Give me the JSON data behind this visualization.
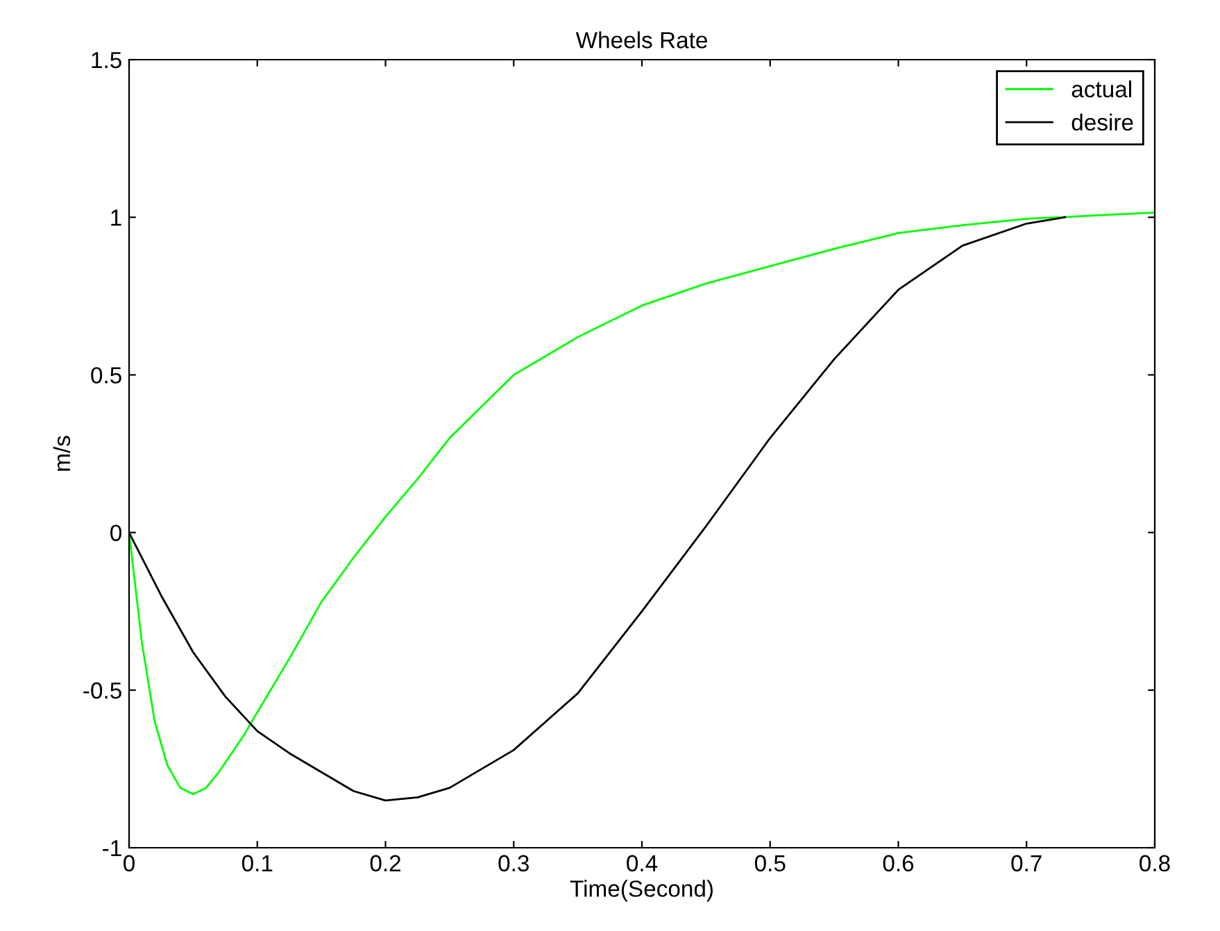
{
  "chart_data": {
    "type": "line",
    "title": "Wheels Rate",
    "xlabel": "Time(Second)",
    "ylabel": "m/s",
    "xlim": [
      0,
      0.8
    ],
    "ylim": [
      -1,
      1.5
    ],
    "xticks": [
      0,
      0.1,
      0.2,
      0.3,
      0.4,
      0.5,
      0.6,
      0.7,
      0.8
    ],
    "yticks": [
      -1,
      -0.5,
      0,
      0.5,
      1,
      1.5
    ],
    "grid": false,
    "legend": "top right",
    "marker": "none",
    "line_style": "solid",
    "series": [
      {
        "name": "actual",
        "color": "#00ff00",
        "x": [
          0,
          0.01,
          0.02,
          0.03,
          0.04,
          0.05,
          0.06,
          0.07,
          0.08,
          0.09,
          0.1,
          0.125,
          0.15,
          0.175,
          0.2,
          0.225,
          0.25,
          0.3,
          0.35,
          0.4,
          0.45,
          0.5,
          0.55,
          0.6,
          0.65,
          0.7,
          0.75,
          0.8
        ],
        "values": [
          0,
          -0.35,
          -0.6,
          -0.74,
          -0.81,
          -0.83,
          -0.81,
          -0.76,
          -0.7,
          -0.64,
          -0.57,
          -0.4,
          -0.22,
          -0.08,
          0.05,
          0.17,
          0.3,
          0.5,
          0.62,
          0.72,
          0.79,
          0.845,
          0.9,
          0.95,
          0.975,
          0.995,
          1.005,
          1.015
        ]
      },
      {
        "name": "desire",
        "color": "#000000",
        "x": [
          0,
          0.025,
          0.05,
          0.075,
          0.1,
          0.125,
          0.15,
          0.175,
          0.2,
          0.225,
          0.25,
          0.3,
          0.35,
          0.4,
          0.45,
          0.5,
          0.55,
          0.6,
          0.65,
          0.7,
          0.73
        ],
        "values": [
          0,
          -0.2,
          -0.38,
          -0.52,
          -0.63,
          -0.7,
          -0.76,
          -0.82,
          -0.85,
          -0.84,
          -0.81,
          -0.69,
          -0.51,
          -0.25,
          0.02,
          0.3,
          0.55,
          0.77,
          0.91,
          0.98,
          1.0
        ]
      }
    ]
  }
}
